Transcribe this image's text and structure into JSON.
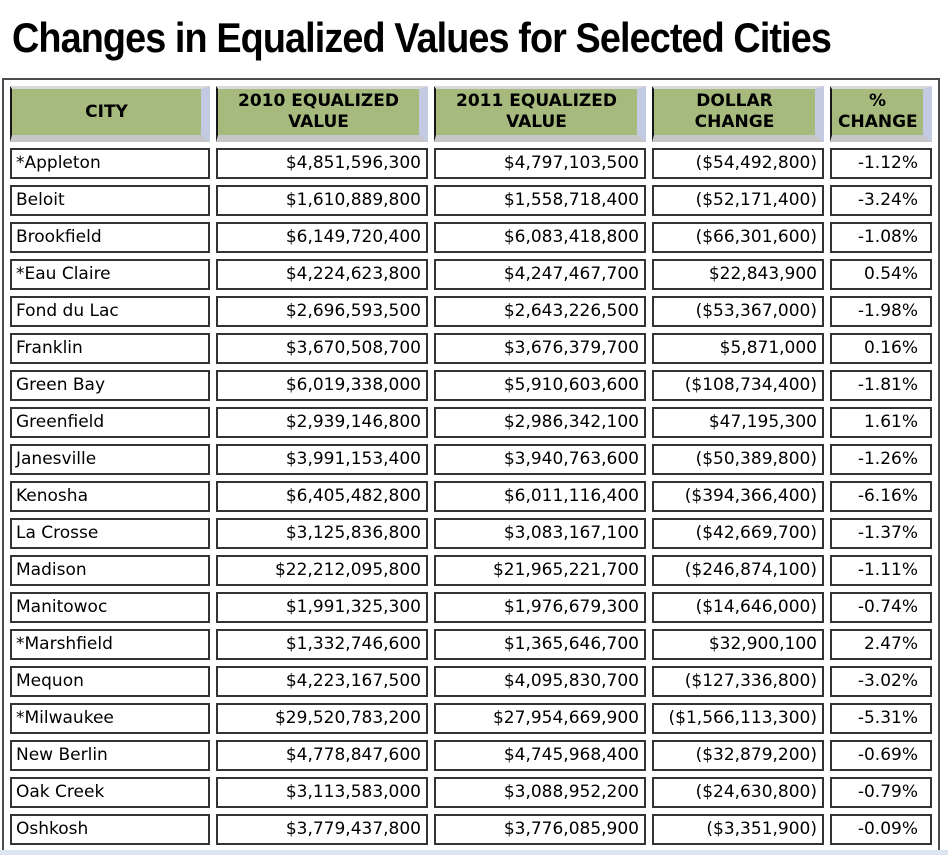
{
  "page_title": "Changes in Equalized Values for Selected Cities",
  "colors": {
    "header_green": "#a7ba7e",
    "header_shadow_blue": "#c3cbe3",
    "header_shadow_gray": "#c6c6c6",
    "cell_border": "#333333",
    "outer_border": "#4d4d4d",
    "bottom_strip_blue": "#dce6f1",
    "text": "#000000"
  },
  "chart_data": {
    "type": "table",
    "title": "Changes in Equalized Values for Selected Cities",
    "columns": [
      "CITY",
      "2010 EQUALIZED VALUE",
      "2011 EQUALIZED VALUE",
      "DOLLAR CHANGE",
      "% CHANGE"
    ],
    "rows": [
      [
        "*Appleton",
        "$4,851,596,300",
        "$4,797,103,500",
        "($54,492,800)",
        "-1.12%"
      ],
      [
        "Beloit",
        "$1,610,889,800",
        "$1,558,718,400",
        "($52,171,400)",
        "-3.24%"
      ],
      [
        "Brookfield",
        "$6,149,720,400",
        "$6,083,418,800",
        "($66,301,600)",
        "-1.08%"
      ],
      [
        "*Eau Claire",
        "$4,224,623,800",
        "$4,247,467,700",
        "$22,843,900",
        "0.54%"
      ],
      [
        "Fond du Lac",
        "$2,696,593,500",
        "$2,643,226,500",
        "($53,367,000)",
        "-1.98%"
      ],
      [
        "Franklin",
        "$3,670,508,700",
        "$3,676,379,700",
        "$5,871,000",
        "0.16%"
      ],
      [
        "Green Bay",
        "$6,019,338,000",
        "$5,910,603,600",
        "($108,734,400)",
        "-1.81%"
      ],
      [
        "Greenfield",
        "$2,939,146,800",
        "$2,986,342,100",
        "$47,195,300",
        "1.61%"
      ],
      [
        "Janesville",
        "$3,991,153,400",
        "$3,940,763,600",
        "($50,389,800)",
        "-1.26%"
      ],
      [
        "Kenosha",
        "$6,405,482,800",
        "$6,011,116,400",
        "($394,366,400)",
        "-6.16%"
      ],
      [
        "La Crosse",
        "$3,125,836,800",
        "$3,083,167,100",
        "($42,669,700)",
        "-1.37%"
      ],
      [
        "Madison",
        "$22,212,095,800",
        "$21,965,221,700",
        "($246,874,100)",
        "-1.11%"
      ],
      [
        "Manitowoc",
        "$1,991,325,300",
        "$1,976,679,300",
        "($14,646,000)",
        "-0.74%"
      ],
      [
        "*Marshfield",
        "$1,332,746,600",
        "$1,365,646,700",
        "$32,900,100",
        "2.47%"
      ],
      [
        "Mequon",
        "$4,223,167,500",
        "$4,095,830,700",
        "($127,336,800)",
        "-3.02%"
      ],
      [
        "*Milwaukee",
        "$29,520,783,200",
        "$27,954,669,900",
        "($1,566,113,300)",
        "-5.31%"
      ],
      [
        "New Berlin",
        "$4,778,847,600",
        "$4,745,968,400",
        "($32,879,200)",
        "-0.69%"
      ],
      [
        "Oak Creek",
        "$3,113,583,000",
        "$3,088,952,200",
        "($24,630,800)",
        "-0.79%"
      ],
      [
        "Oshkosh",
        "$3,779,437,800",
        "$3,776,085,900",
        "($3,351,900)",
        "-0.09%"
      ]
    ]
  }
}
